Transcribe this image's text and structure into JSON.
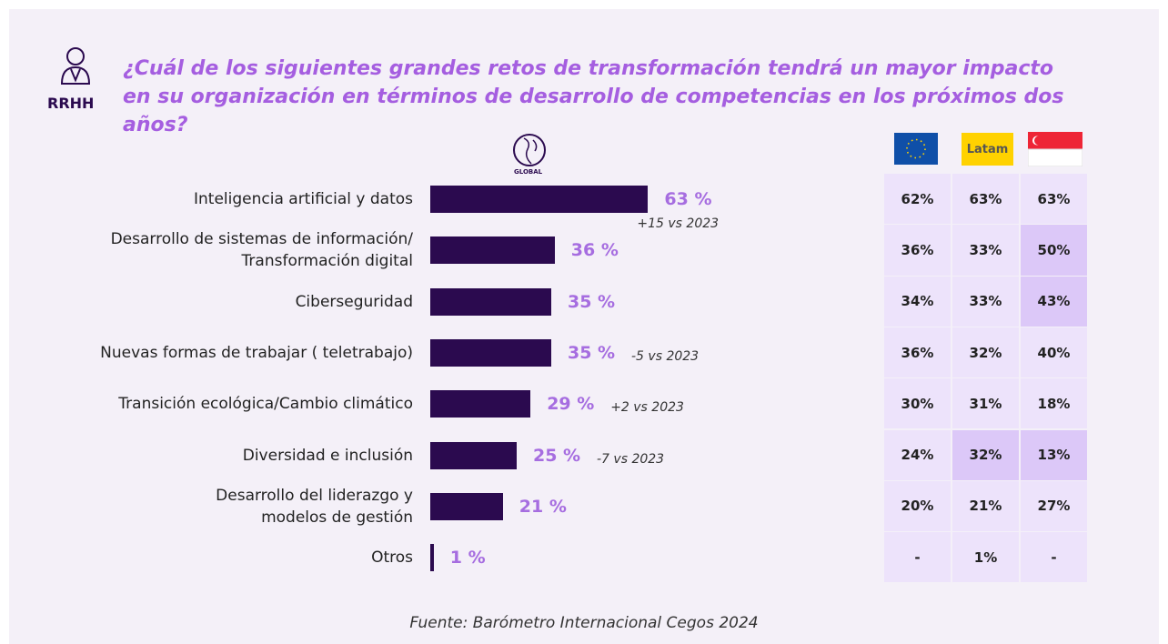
{
  "chart_data": {
    "type": "bar",
    "orientation": "horizontal",
    "title": "¿Cuál de los siguientes grandes retos de transformación tendrá un mayor impacto en su organización en términos de desarrollo de competencias en los próximos dos años?",
    "department": "RRHH",
    "scope_label": "GLOBAL",
    "categories": [
      "Inteligencia artificial y datos",
      "Desarrollo de sistemas de información/\nTransformación digital",
      "Ciberseguridad",
      "Nuevas formas de trabajar ( teletrabajo)",
      "Transición ecológica/Cambio climático",
      "Diversidad e inclusión",
      "Desarrollo del liderazgo y\nmodelos de gestión",
      "Otros"
    ],
    "values": [
      63,
      36,
      35,
      35,
      29,
      25,
      21,
      1
    ],
    "value_labels": [
      "63 %",
      "36 %",
      "35 %",
      "35 %",
      "29 %",
      "25 %",
      "21 %",
      "1 %"
    ],
    "annotations": [
      "+15 vs 2023",
      null,
      null,
      "-5 vs 2023",
      "+2 vs 2023",
      "-7 vs 2023",
      null,
      null
    ],
    "color": "#2b0a4f",
    "label_color": "#a66de0",
    "xlim": [
      0,
      100
    ],
    "table": {
      "latam_header": "Latam",
      "rows": [
        [
          "62%",
          "63%",
          "63%"
        ],
        [
          "36%",
          "33%",
          "50%"
        ],
        [
          "34%",
          "33%",
          "43%"
        ],
        [
          "36%",
          "32%",
          "40%"
        ],
        [
          "30%",
          "31%",
          "18%"
        ],
        [
          "24%",
          "32%",
          "13%"
        ],
        [
          "20%",
          "21%",
          "27%"
        ],
        [
          "-",
          "1%",
          "-"
        ]
      ],
      "cell_color": "#ede3fb",
      "highlight_color": "#dcc8f8",
      "highlights": [
        [
          1,
          2
        ],
        [
          2,
          2
        ],
        [
          5,
          1
        ],
        [
          5,
          2
        ]
      ]
    },
    "source": "Fuente: Barómetro Internacional Cegos 2024"
  }
}
